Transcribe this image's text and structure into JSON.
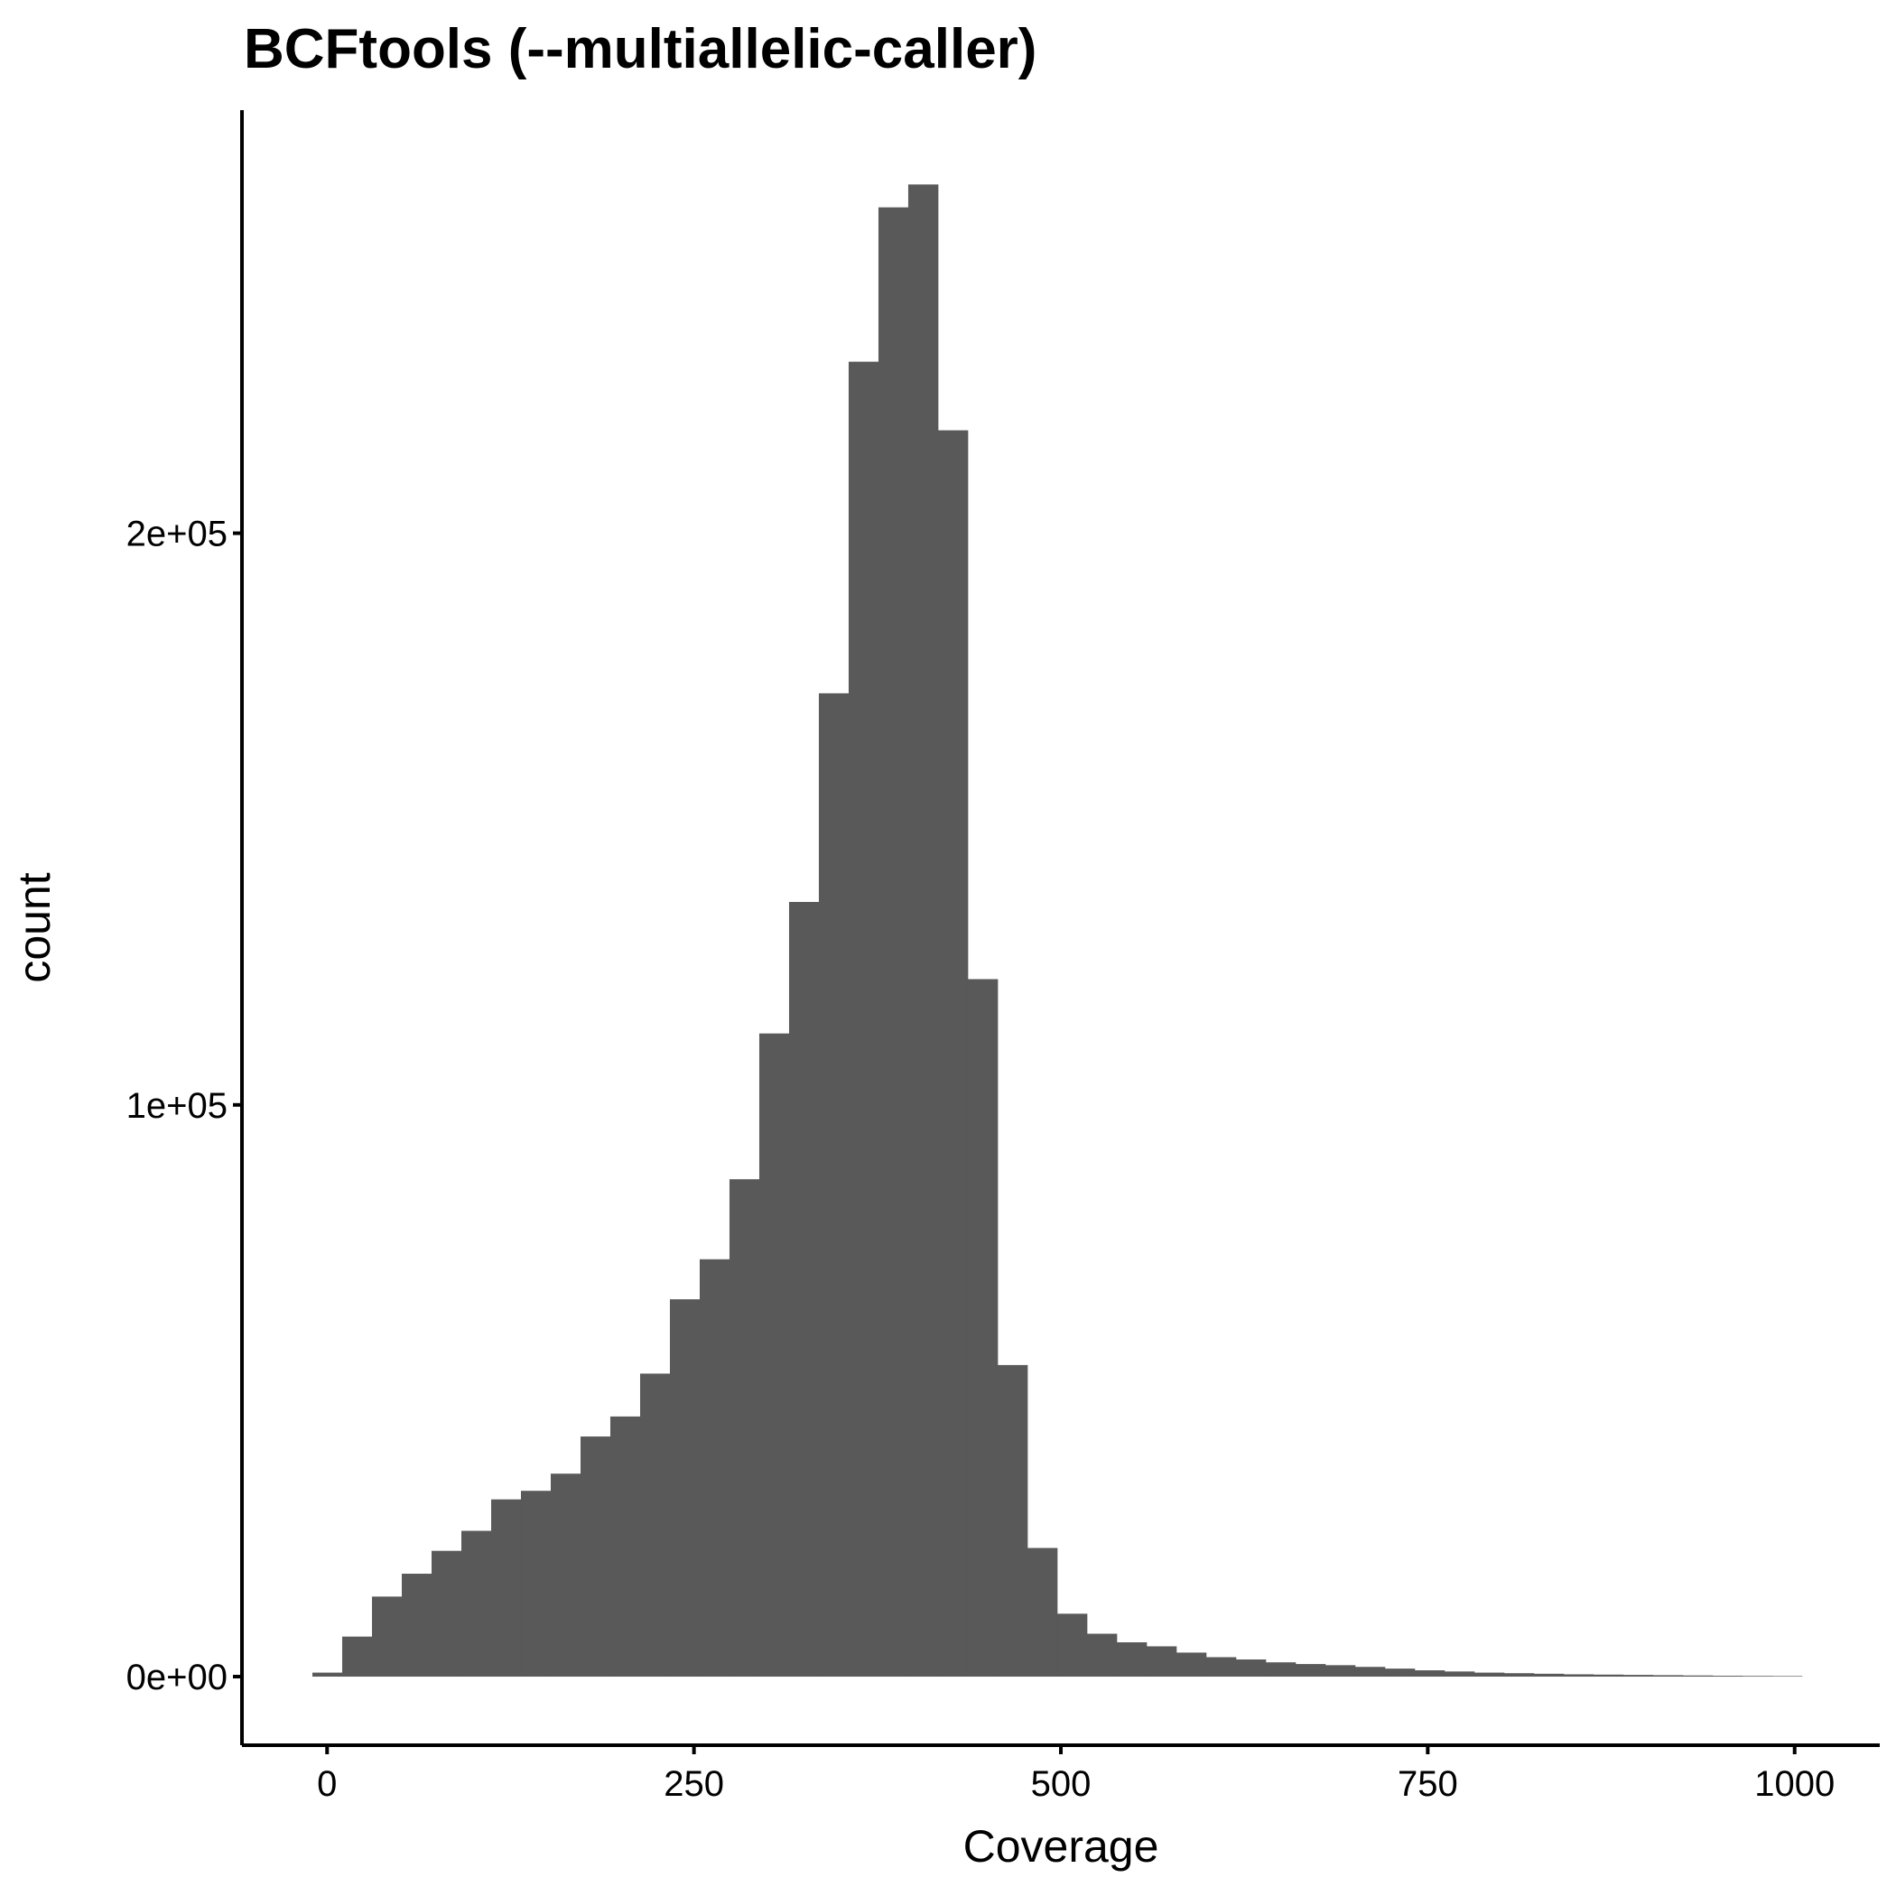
{
  "chart_data": {
    "type": "bar",
    "title": "BCFtools (--multiallelic-caller)",
    "xlabel": "Coverage",
    "ylabel": "count",
    "xlim": [
      -58,
      1058
    ],
    "ylim": [
      -12000,
      274000
    ],
    "x_ticks": [
      0,
      250,
      500,
      750,
      1000
    ],
    "x_tick_labels": [
      "0",
      "250",
      "500",
      "750",
      "1000"
    ],
    "y_ticks": [
      0,
      100000,
      200000
    ],
    "y_tick_labels": [
      "0e+00",
      "1e+05",
      "2e+05"
    ],
    "bin_width": 20.3,
    "bin_start": -10,
    "values": [
      700,
      7000,
      14000,
      18000,
      22000,
      25500,
      31000,
      32500,
      35500,
      42000,
      45500,
      53000,
      66000,
      73000,
      87000,
      112500,
      135500,
      172000,
      230000,
      257000,
      261000,
      218000,
      122000,
      54500,
      22500,
      11000,
      7500,
      6000,
      5300,
      4200,
      3400,
      3000,
      2500,
      2200,
      2000,
      1700,
      1400,
      1100,
      900,
      700,
      600,
      500,
      400,
      350,
      300,
      250,
      200,
      150,
      120,
      100
    ],
    "bar_color": "#595959",
    "grid": false,
    "legend": "none"
  }
}
